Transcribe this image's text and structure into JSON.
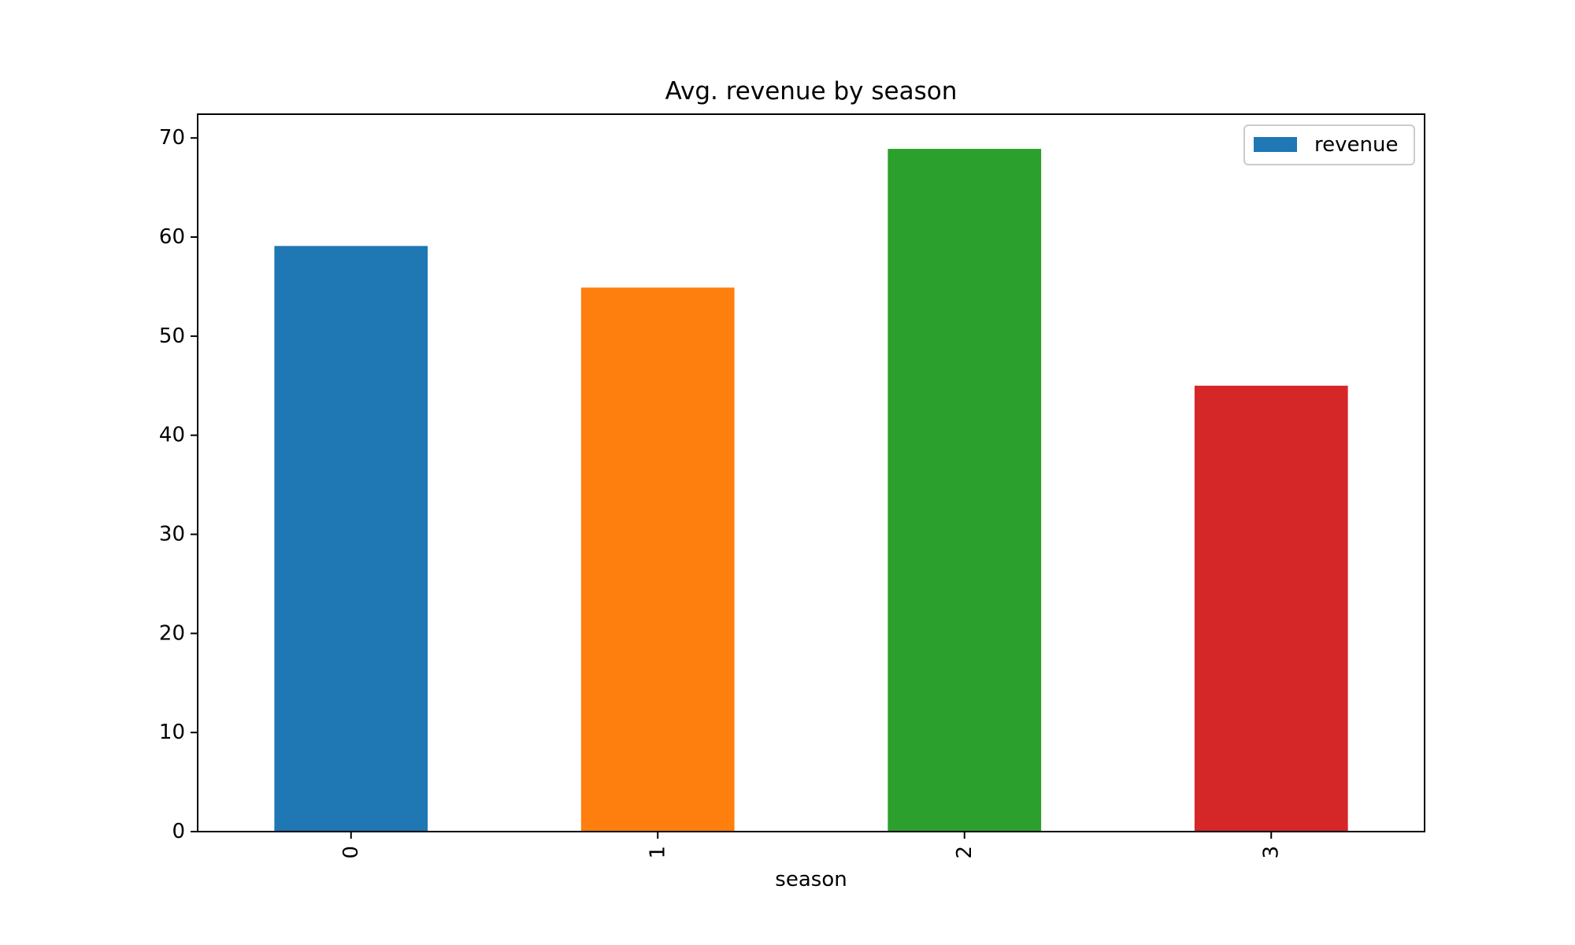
{
  "chart_data": {
    "type": "bar",
    "title": "Avg. revenue by season",
    "xlabel": "season",
    "ylabel": "",
    "categories": [
      "0",
      "1",
      "2",
      "3"
    ],
    "series": [
      {
        "name": "revenue",
        "values": [
          59.1,
          54.9,
          68.9,
          45.0
        ]
      }
    ],
    "bar_colors": [
      "#1f77b4",
      "#ff7f0e",
      "#2ca02c",
      "#d62728"
    ],
    "legend_color": "#1f77b4",
    "ylim": [
      0,
      72.4
    ],
    "yticks": [
      0,
      10,
      20,
      30,
      40,
      50,
      60,
      70
    ],
    "xtick_rotation": "vertical",
    "legend_position": "top-right",
    "grid": false
  }
}
